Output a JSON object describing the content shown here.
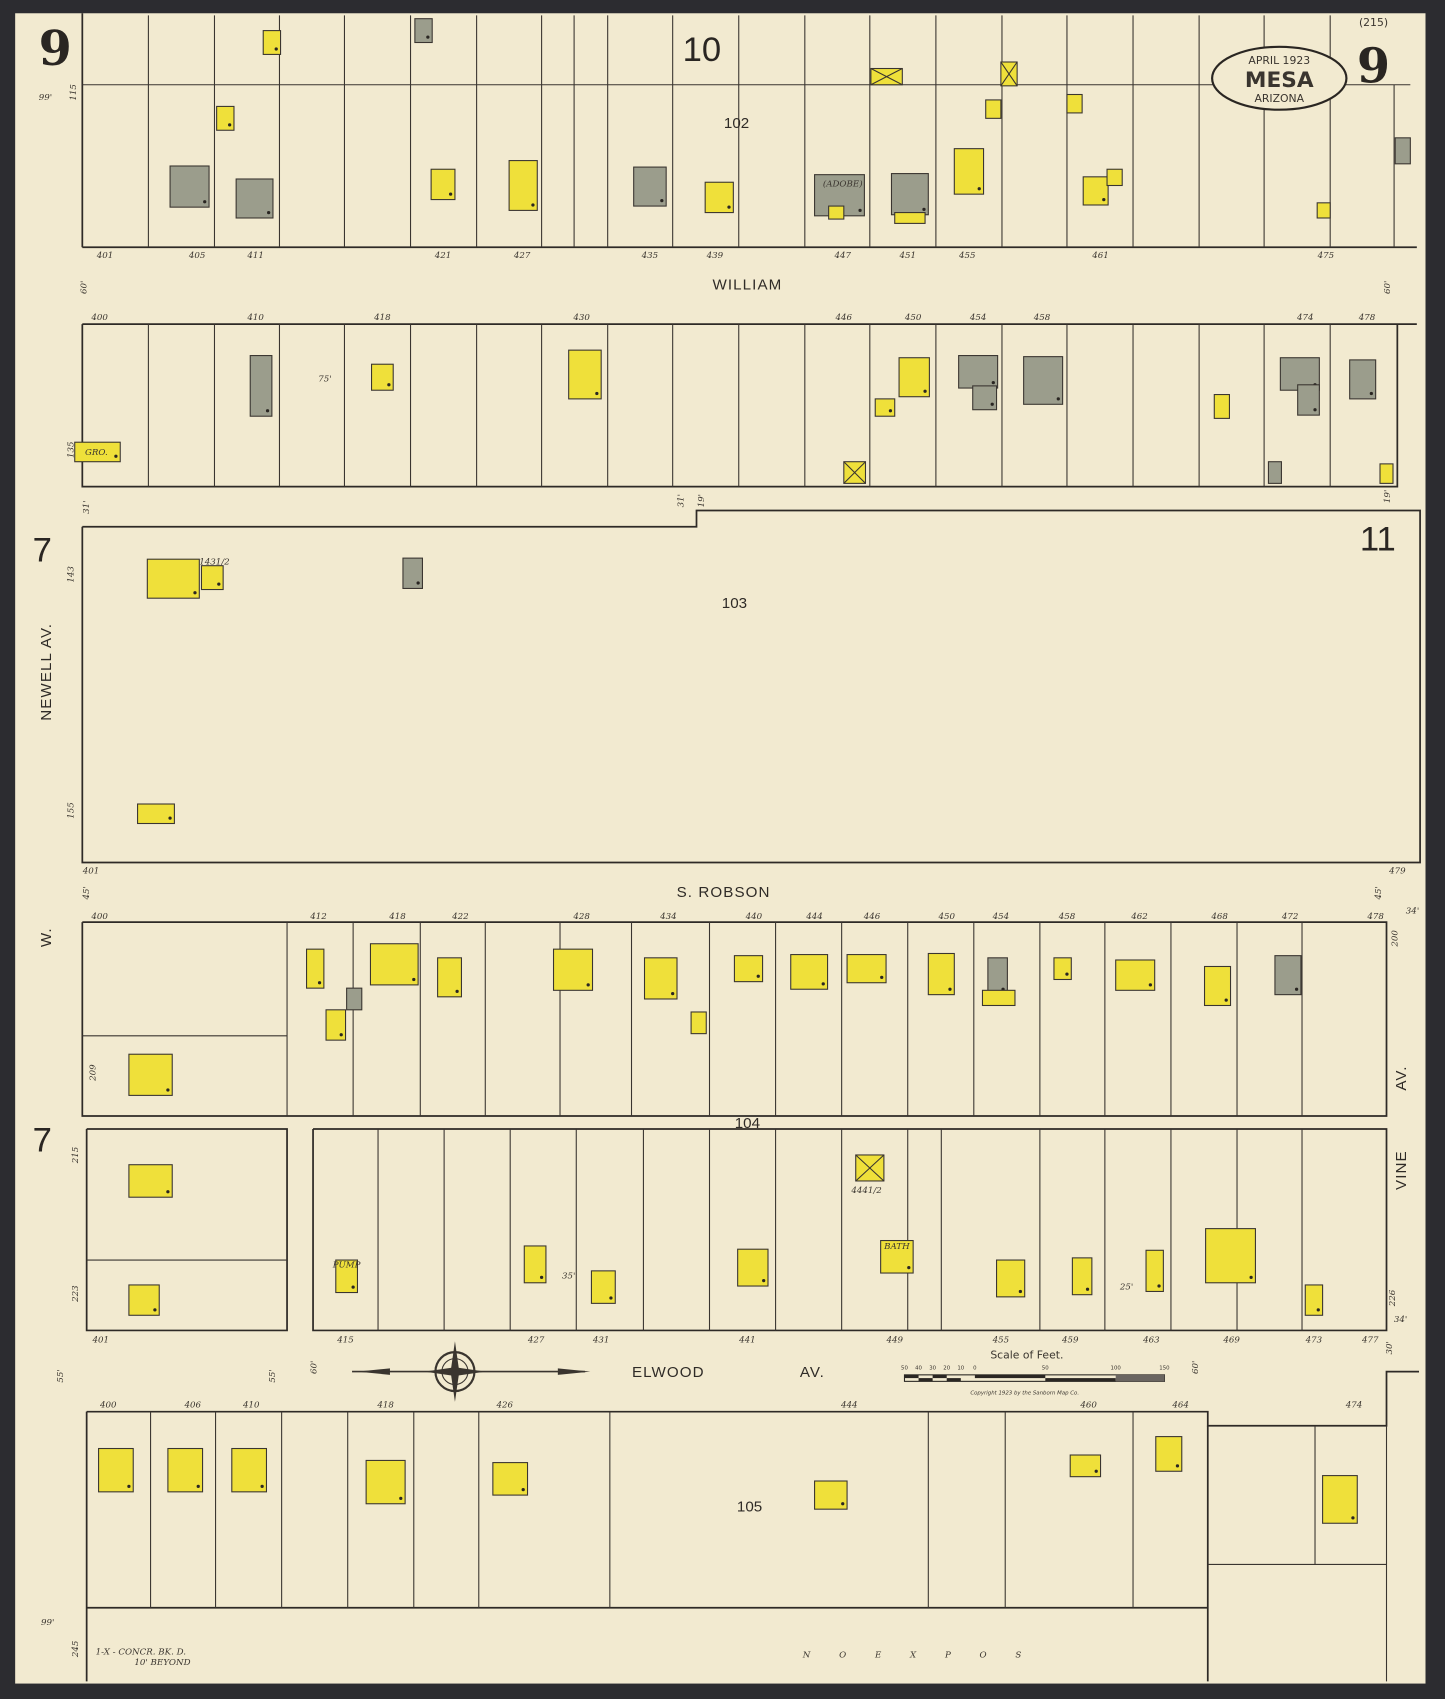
{
  "title": {
    "date": "APRIL 1923",
    "city": "MESA",
    "state": "ARIZONA"
  },
  "sheet": {
    "number": "9",
    "index": "(215)",
    "adjoining": {
      "top": "10",
      "right": "11",
      "left_upper": "7",
      "left_lower": "7"
    }
  },
  "colors": {
    "paper": "#f2ead0",
    "frame_dwelling": "#efe03a",
    "adobe": "#9b9d8c",
    "outline": "#3a3530",
    "border": "#2c2c30"
  },
  "legend_meaning": {
    "yellow": "frame",
    "gray": "adobe"
  },
  "streets": {
    "william": "WILLIAM",
    "robson": "S.  ROBSON",
    "elwood": "ELWOOD",
    "elwood_av": "AV.",
    "newell": "NEWELL  AV.",
    "w": "W.",
    "vine": "VINE",
    "vine_av": "AV."
  },
  "blocks": [
    "102",
    "103",
    "104",
    "105"
  ],
  "house_numbers": {
    "block102": [
      "401",
      "405",
      "411",
      "421",
      "427",
      "435",
      "439",
      "447",
      "451",
      "455",
      "461",
      "475"
    ],
    "william_south": [
      "400",
      "410",
      "418",
      "430",
      "446",
      "450",
      "454",
      "458",
      "474",
      "478"
    ],
    "block103": [
      "401",
      "479"
    ],
    "robson_south": [
      "400",
      "412",
      "418",
      "422",
      "428",
      "434",
      "440",
      "444",
      "446",
      "450",
      "454",
      "458",
      "462",
      "468",
      "472",
      "478"
    ],
    "elwood_north": [
      "401",
      "415",
      "427",
      "431",
      "441",
      "449",
      "455",
      "459",
      "463",
      "469",
      "473",
      "477"
    ],
    "elwood_south": [
      "400",
      "406",
      "410",
      "418",
      "426",
      "444",
      "460",
      "464",
      "474"
    ]
  },
  "dimensions": [
    "99'",
    "115",
    "60'",
    "60'",
    "31'",
    "31'",
    "19'",
    "19'",
    "135",
    "143",
    "155",
    "45'",
    "45'",
    "209",
    "215",
    "223",
    "55'",
    "55'",
    "60'",
    "60'",
    "245",
    "99'",
    "200",
    "226",
    "34'",
    "34'",
    "30'",
    "75'",
    "35'",
    "25'"
  ],
  "building_labels": [
    "(ADOBE)",
    "GRO.",
    "1431/2",
    "4441/2",
    "BATH",
    "PUMP"
  ],
  "scale": {
    "title": "Scale of Feet.",
    "ticks": [
      "50",
      "40",
      "30",
      "20",
      "10",
      "0",
      "50",
      "100",
      "150"
    ],
    "copyright": "Copyright 1923 by the Sanborn Map Co."
  },
  "notes": {
    "concrete": "1-X - CONCR. BK. D.",
    "beyond": "10' BEYOND",
    "no_exposures": "N O   E X P O S"
  }
}
